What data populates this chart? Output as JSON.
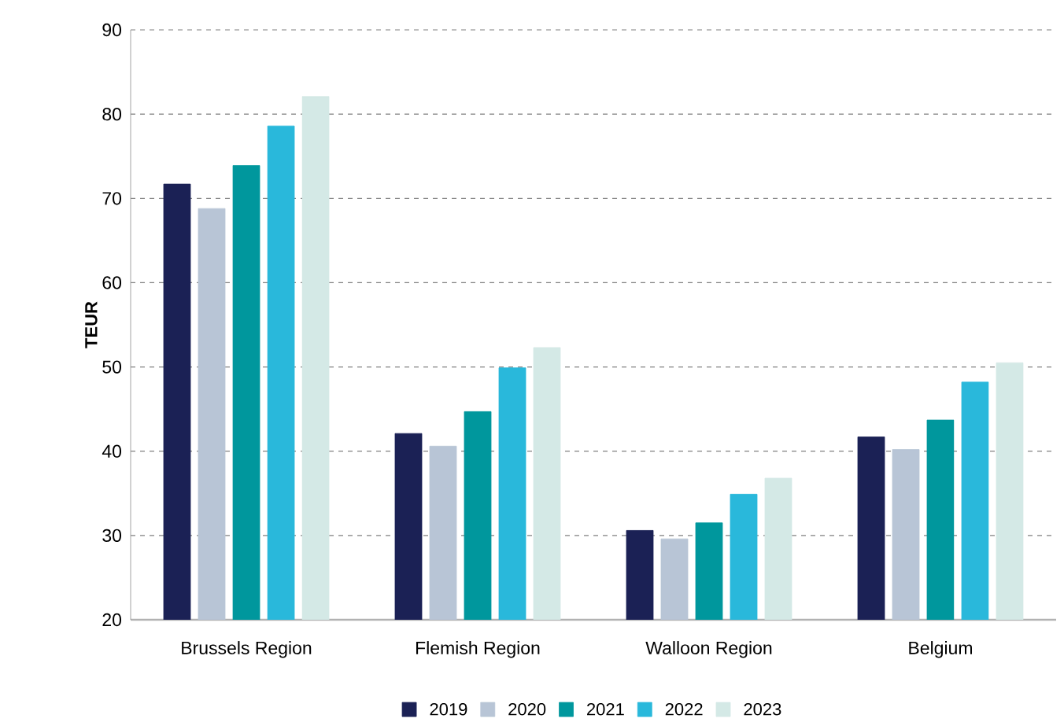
{
  "chart_data": {
    "type": "bar",
    "ylabel": "TEUR",
    "categories": [
      "Brussels Region",
      "Flemish Region",
      "Walloon Region",
      "Belgium"
    ],
    "series": [
      {
        "name": "2019",
        "color": "#1b2155",
        "values": [
          71.7,
          42.1,
          30.6,
          41.7
        ]
      },
      {
        "name": "2020",
        "color": "#b8c5d6",
        "values": [
          68.8,
          40.6,
          29.6,
          40.2
        ]
      },
      {
        "name": "2021",
        "color": "#00979d",
        "values": [
          73.9,
          44.7,
          31.5,
          43.7
        ]
      },
      {
        "name": "2022",
        "color": "#29b8db",
        "values": [
          78.6,
          49.9,
          34.9,
          48.2
        ]
      },
      {
        "name": "2023",
        "color": "#d4e9e6",
        "values": [
          82.1,
          52.3,
          36.8,
          50.5
        ]
      }
    ],
    "ylim": [
      20,
      90
    ],
    "yticks": [
      20,
      30,
      40,
      50,
      60,
      70,
      80,
      90
    ],
    "grid": "y",
    "legend": "bottom"
  }
}
